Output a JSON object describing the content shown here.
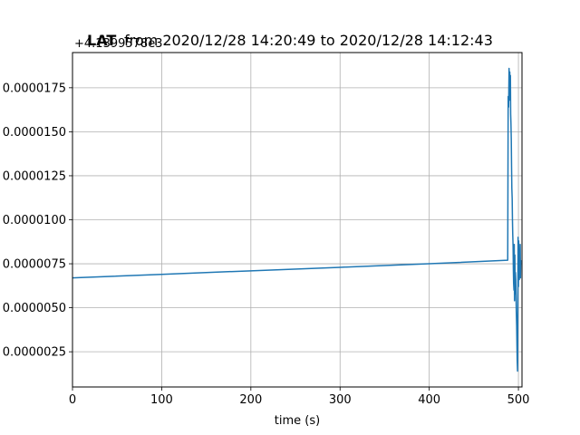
{
  "chart_data": {
    "type": "line",
    "title": "from 2020/12/28 14:20:49 to 2020/12/28 14:12:43",
    "title_prefix": "LAT",
    "offset_label": "+4.1399578e3",
    "xlabel": "time (s)",
    "ylabel": "",
    "xlim": [
      0,
      504
    ],
    "ylim": [
      5e-07,
      1.95e-05
    ],
    "x_ticks": [
      0,
      100,
      200,
      300,
      400,
      500
    ],
    "x_tick_labels": [
      "0",
      "100",
      "200",
      "300",
      "400",
      "500"
    ],
    "y_ticks": [
      2.5e-06,
      5e-06,
      7.5e-06,
      1e-05,
      1.25e-05,
      1.5e-05,
      1.75e-05
    ],
    "y_tick_labels": [
      "0.0000025",
      "0.0000050",
      "0.0000075",
      "0.0000100",
      "0.0000125",
      "0.0000150",
      "0.0000175"
    ],
    "grid": true,
    "line_color": "#1f77b4",
    "series": [
      {
        "x": [
          0,
          100,
          200,
          300,
          400,
          488,
          488.5,
          489,
          489.5,
          490,
          490.3,
          490.6,
          491,
          491.3,
          491.6,
          492,
          492.3,
          492.6,
          493,
          493.3,
          493.6,
          494,
          494.3,
          494.6,
          495,
          495.3,
          495.6,
          496,
          496.3,
          496.6,
          497,
          497.3,
          497.6,
          498,
          498.3,
          498.6,
          499,
          499.3,
          499.6,
          500,
          500.3,
          500.6,
          501,
          501.3,
          501.6,
          502,
          502.3,
          502.6
        ],
        "y": [
          6.7e-06,
          6.9e-06,
          7.1e-06,
          7.3e-06,
          7.5e-06,
          7.7e-06,
          1.7e-05,
          1.64e-05,
          1.86e-05,
          1.68e-05,
          1.84e-05,
          1.72e-05,
          1.82e-05,
          1.6e-05,
          1.55e-05,
          1.45e-05,
          1.3e-05,
          1.18e-05,
          1.12e-05,
          1e-05,
          9.2e-06,
          8.5e-06,
          7.2e-06,
          6.4e-06,
          6e-06,
          8.6e-06,
          5.4e-06,
          8e-06,
          5.8e-06,
          7e-06,
          6.6e-06,
          5.7e-06,
          4.8e-06,
          4e-06,
          3e-06,
          2e-06,
          1.4e-06,
          5e-06,
          9e-06,
          6.2e-06,
          8.8e-06,
          7.5e-06,
          6.6e-06,
          8.2e-06,
          7e-06,
          8.6e-06,
          6.7e-06,
          7.7e-06
        ]
      }
    ]
  }
}
